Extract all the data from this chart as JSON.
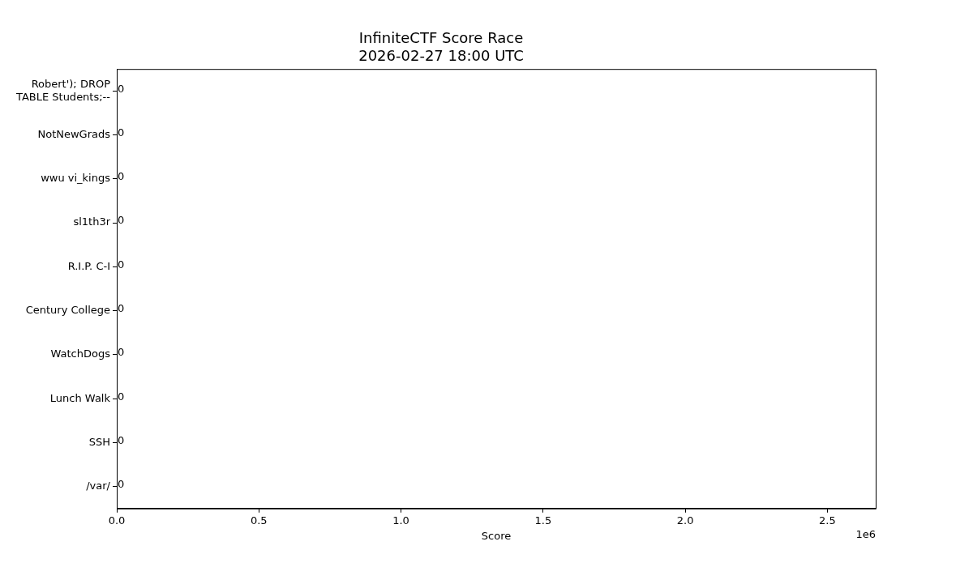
{
  "chart_data": {
    "type": "bar",
    "orientation": "horizontal",
    "title": "InfiniteCTF Score Race",
    "subtitle": "2026-02-27 18:00 UTC",
    "xlabel": "Score",
    "categories": [
      "Robert'); DROP TABLE Students;--",
      "NotNewGrads",
      "wwu vi_kings",
      "sl1th3r",
      "R.I.P. C-I",
      "Century College",
      "WatchDogs",
      "Lunch Walk",
      "SSH",
      "/var/"
    ],
    "values": [
      0,
      0,
      0,
      0,
      0,
      0,
      0,
      0,
      0,
      0
    ],
    "xlim": [
      0,
      2.67
    ],
    "xticks": [
      {
        "value": 0,
        "label": "0.0"
      },
      0.5,
      {
        "value": 1,
        "label": "1.0"
      },
      1.5,
      {
        "value": 2,
        "label": "2.0"
      },
      2.5
    ],
    "annotations": [
      "1e6"
    ],
    "data_labels": true,
    "grid": false,
    "legend": false
  }
}
